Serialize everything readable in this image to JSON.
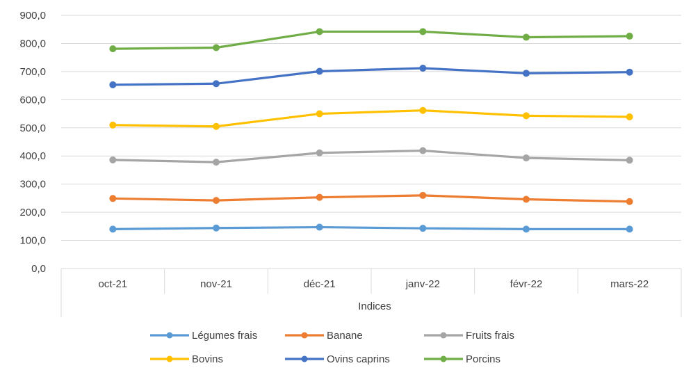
{
  "chart_data": {
    "type": "line",
    "title": "",
    "xlabel": "Indices",
    "ylabel": "",
    "categories": [
      "oct-21",
      "nov-21",
      "déc-21",
      "janv-22",
      "févr-22",
      "mars-22"
    ],
    "y_ticks": [
      "0,0",
      "100,0",
      "200,0",
      "300,0",
      "400,0",
      "500,0",
      "600,0",
      "700,0",
      "800,0",
      "900,0"
    ],
    "ylim": [
      0,
      900
    ],
    "grid": true,
    "legend_position": "bottom",
    "series": [
      {
        "name": "Légumes frais",
        "color": "#5B9BD5",
        "values": [
          140,
          144,
          147,
          143,
          140,
          140
        ]
      },
      {
        "name": "Banane",
        "color": "#ED7D31",
        "values": [
          249,
          242,
          253,
          260,
          246,
          238
        ]
      },
      {
        "name": "Fruits frais",
        "color": "#A5A5A5",
        "values": [
          386,
          378,
          411,
          419,
          393,
          385
        ]
      },
      {
        "name": "Bovins",
        "color": "#FFC000",
        "values": [
          510,
          505,
          550,
          562,
          543,
          539
        ]
      },
      {
        "name": "Ovins caprins",
        "color": "#4472C4",
        "values": [
          653,
          657,
          701,
          712,
          694,
          698
        ]
      },
      {
        "name": "Porcins",
        "color": "#70AD47",
        "values": [
          781,
          785,
          842,
          842,
          822,
          826
        ]
      }
    ]
  }
}
